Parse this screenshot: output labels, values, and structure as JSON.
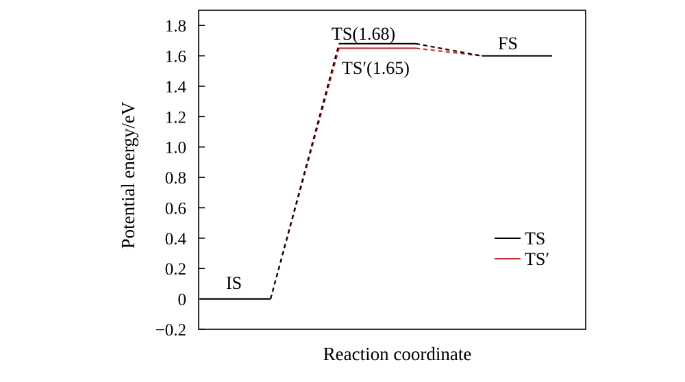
{
  "chart_data": {
    "type": "line",
    "title": "",
    "xlabel": "Reaction coordinate",
    "ylabel": "Potential energy/eV",
    "ylim": [
      -0.2,
      1.9
    ],
    "yticks": [
      -0.2,
      0,
      0.2,
      0.4,
      0.6,
      0.8,
      1.0,
      1.2,
      1.4,
      1.6,
      1.8
    ],
    "ytick_labels": [
      "−0.2",
      "0",
      "0.2",
      "0.4",
      "0.6",
      "0.8",
      "1.0",
      "1.2",
      "1.4",
      "1.6",
      "1.8"
    ],
    "xlim": [
      0,
      5
    ],
    "grid": false,
    "legend_position": "lower-right",
    "series": [
      {
        "name": "TS",
        "color": "#000000",
        "x": [
          0,
          1,
          2,
          3,
          4,
          5
        ],
        "y": [
          0,
          0,
          1.68,
          1.68,
          1.6,
          1.6
        ]
      },
      {
        "name": "TS′",
        "color": "#e8202a",
        "x": [
          0,
          1,
          2,
          3,
          4,
          5
        ],
        "y": [
          0,
          0,
          1.65,
          1.65,
          1.6,
          1.6
        ]
      }
    ],
    "annotations": [
      {
        "text": "IS"
      },
      {
        "text": "TS(1.68)"
      },
      {
        "text": "TS′(1.65)"
      },
      {
        "text": "FS"
      }
    ]
  }
}
